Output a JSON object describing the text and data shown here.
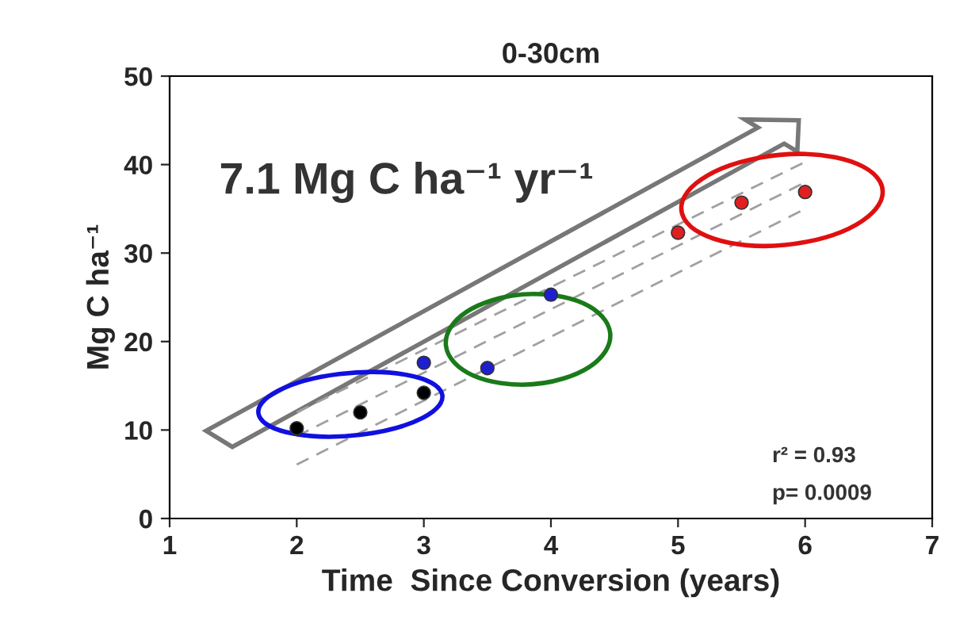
{
  "chart_data": {
    "type": "scatter",
    "title": "0-30cm",
    "xlabel": "Time  Since Conversion (years)",
    "ylabel": "Mg C ha⁻¹",
    "series": [
      {
        "color": "#000000",
        "x": [
          2,
          2.5,
          3
        ],
        "values": [
          10.2,
          12.0,
          14.2
        ]
      },
      {
        "color": "#1f1fd0",
        "x": [
          3,
          3.5,
          4
        ],
        "values": [
          17.6,
          17.0,
          25.3
        ]
      },
      {
        "color": "#e02020",
        "x": [
          5,
          5.5,
          6
        ],
        "values": [
          32.3,
          35.7,
          36.9
        ]
      },
      {
        "type": "line",
        "color": "#a0a0a0",
        "line_style": "dashed",
        "marker": "none",
        "x": [
          2,
          6
        ],
        "values": [
          9.3,
          38.0
        ]
      },
      {
        "type": "line",
        "color": "#a0a0a0",
        "line_style": "dashed",
        "marker": "none",
        "x": [
          2,
          6
        ],
        "values": [
          6.1,
          35.0
        ]
      },
      {
        "type": "line",
        "color": "#a0a0a0",
        "line_style": "dashed",
        "marker": "none",
        "x": [
          2,
          6
        ],
        "values": [
          12.0,
          40.3
        ]
      }
    ],
    "annotations": [
      "7.1 Mg C ha⁻¹ yr⁻¹",
      "r² = 0.93",
      "p= 0.0009"
    ],
    "xlim": [
      1,
      7
    ],
    "xticks": [
      1,
      2,
      3,
      4,
      5,
      6,
      7
    ],
    "ylim": [
      0,
      50
    ],
    "yticks": [
      0,
      10,
      20,
      30,
      40,
      50
    ],
    "marker": "circle",
    "grid": false,
    "legend": false
  }
}
